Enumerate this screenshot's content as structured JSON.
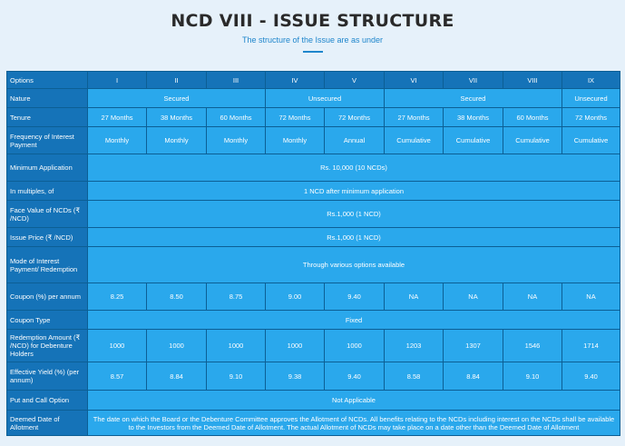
{
  "header": {
    "title": "NCD VIII - ISSUE STRUCTURE",
    "subtitle": "The structure of the Issue are as under"
  },
  "table": {
    "options_label": "Options",
    "columns": [
      "I",
      "II",
      "III",
      "IV",
      "V",
      "VI",
      "VII",
      "VIII",
      "IX"
    ],
    "nature": {
      "label": "Nature",
      "secured_1": "Secured",
      "unsecured_1": "Unsecured",
      "secured_2": "Secured",
      "unsecured_2": "Unsecured"
    },
    "tenure": {
      "label": "Tenure",
      "values": [
        "27 Months",
        "38 Months",
        "60 Months",
        "72 Months",
        "72 Months",
        "27 Months",
        "38 Months",
        "60 Months",
        "72 Months"
      ]
    },
    "frequency": {
      "label": "Frequency of Interest Payment",
      "values": [
        "Monthly",
        "Monthly",
        "Monthly",
        "Monthly",
        "Annual",
        "Cumulative",
        "Cumulative",
        "Cumulative",
        "Cumulative"
      ]
    },
    "minimum_application": {
      "label": "Minimum Application",
      "value": "Rs. 10,000 (10 NCDs)"
    },
    "multiples": {
      "label": "In multiples, of",
      "value": "1 NCD after minimum application"
    },
    "face_value": {
      "label": "Face Value of NCDs (₹ /NCD)",
      "value": "Rs.1,000 (1 NCD)"
    },
    "issue_price": {
      "label": "Issue Price (₹ /NCD)",
      "value": "Rs.1,000 (1 NCD)"
    },
    "mode_of_payment": {
      "label": "Mode of Interest Payment/ Redemption",
      "value": "Through various options available"
    },
    "coupon": {
      "label": "Coupon (%) per annum",
      "values": [
        "8.25",
        "8.50",
        "8.75",
        "9.00",
        "9.40",
        "NA",
        "NA",
        "NA",
        "NA"
      ]
    },
    "coupon_type": {
      "label": "Coupon Type",
      "value": "Fixed"
    },
    "redemption": {
      "label": "Redemption Amount (₹ /NCD) for Debenture Holders",
      "values": [
        "1000",
        "1000",
        "1000",
        "1000",
        "1000",
        "1203",
        "1307",
        "1546",
        "1714"
      ]
    },
    "effective_yield": {
      "label": "Effective Yield (%) (per annum)",
      "values": [
        "8.57",
        "8.84",
        "9.10",
        "9.38",
        "9.40",
        "8.58",
        "8.84",
        "9.10",
        "9.40"
      ]
    },
    "put_call": {
      "label": "Put and Call Option",
      "value": "Not Applicable"
    },
    "deemed_date": {
      "label": "Deemed Date of Allotment",
      "value": "The date on which the Board or the Debenture Committee approves the Allotment of NCDs. All benefits relating to the NCDs including interest on the NCDs shall be available to the Investors from the Deemed Date of Allotment. The actual Allotment of NCDs may take place on a date other than the Deemed Date of Allotment"
    }
  },
  "colors": {
    "label_bg": "#1573b8",
    "value_bg": "#2aa8ec",
    "border": "#0c5f95",
    "accent": "#1f86cc",
    "page_bg": "#e6f1fa"
  }
}
